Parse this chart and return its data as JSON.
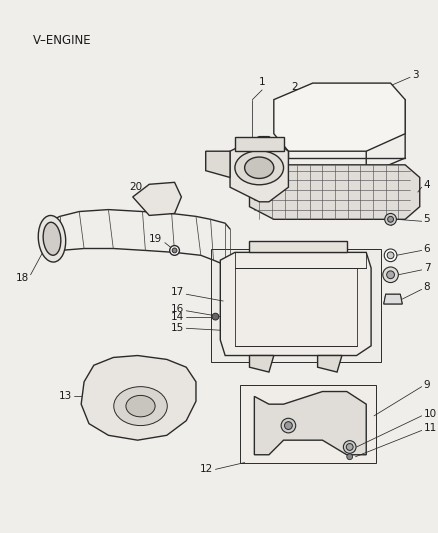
{
  "title": "V–ENGINE",
  "bg_color": "#f0eeeb",
  "line_color": "#2a2a2a",
  "label_color": "#1a1a1a",
  "figsize": [
    4.38,
    5.33
  ],
  "dpi": 100
}
